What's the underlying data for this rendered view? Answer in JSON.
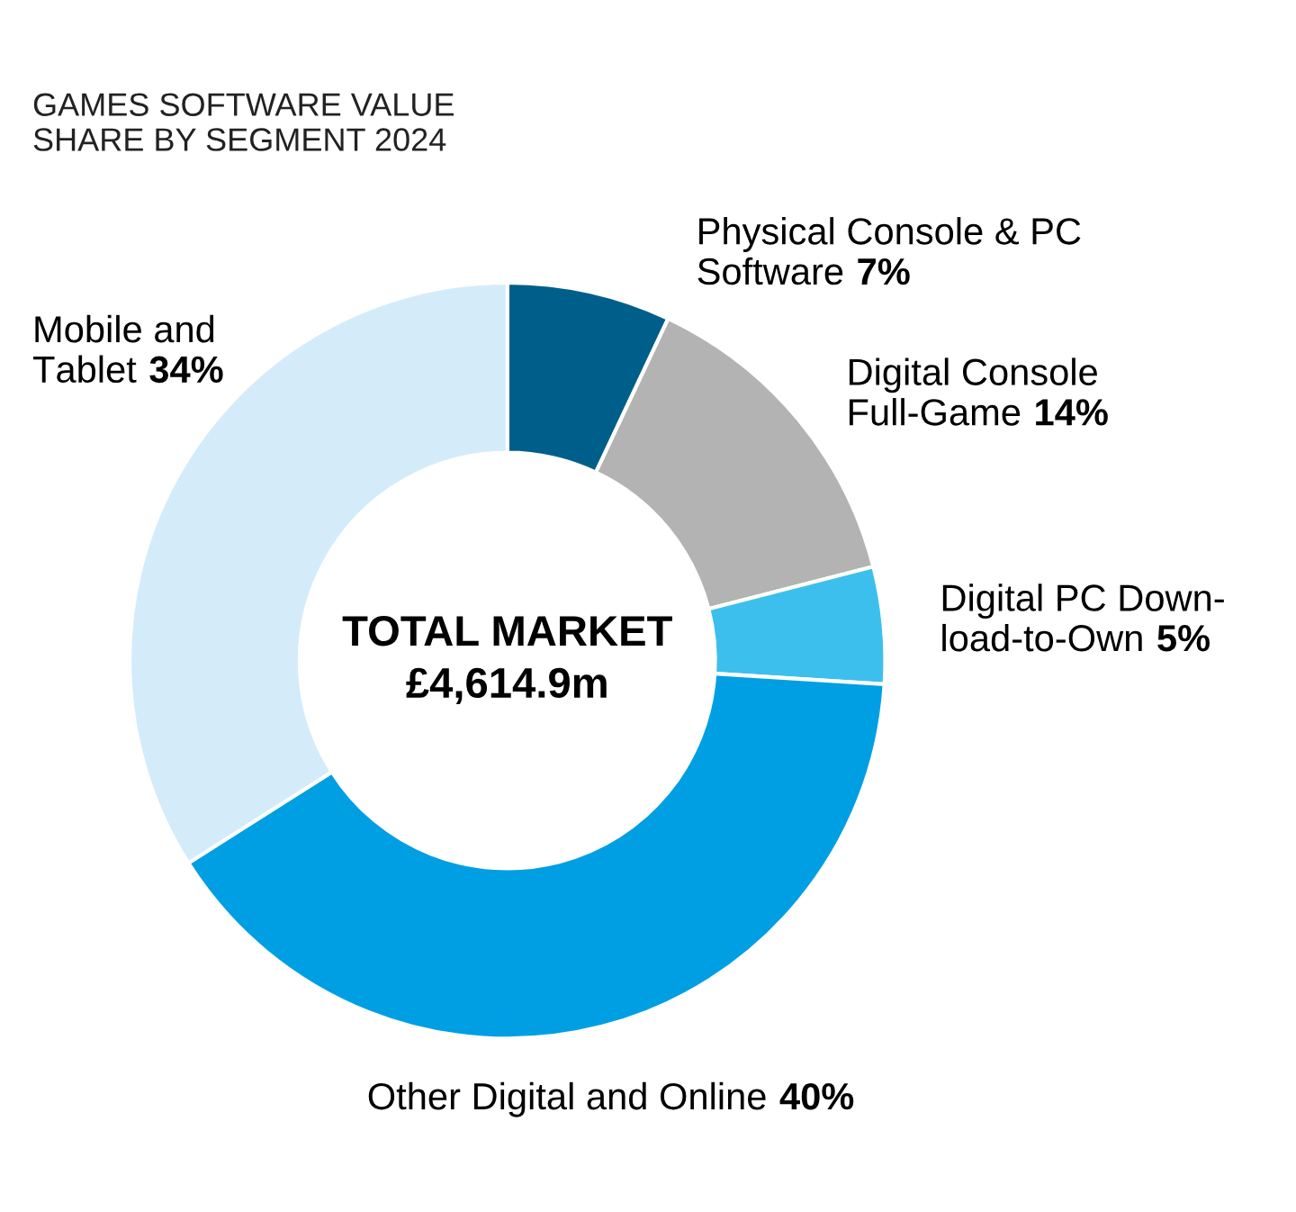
{
  "chart_data": {
    "type": "donut",
    "title": "GAMES SOFTWARE VALUE\nSHARE BY SEGMENT 2024",
    "categories": [
      "Physical Console & PC\nSoftware",
      "Digital Console\nFull-Game",
      "Digital PC Down-\nload-to-Own",
      "Other Digital and Online",
      "Mobile and\nTablet"
    ],
    "values": [
      7,
      14,
      5,
      40,
      34
    ],
    "value_labels": [
      "7%",
      "14%",
      "5%",
      "40%",
      "34%"
    ],
    "colors": [
      "#005f8a",
      "#b3b3b3",
      "#3dbfee",
      "#009fe3",
      "#d4ebfa"
    ],
    "annotations": [
      "TOTAL MARKET\n£4,614.9m"
    ],
    "legend": false
  }
}
